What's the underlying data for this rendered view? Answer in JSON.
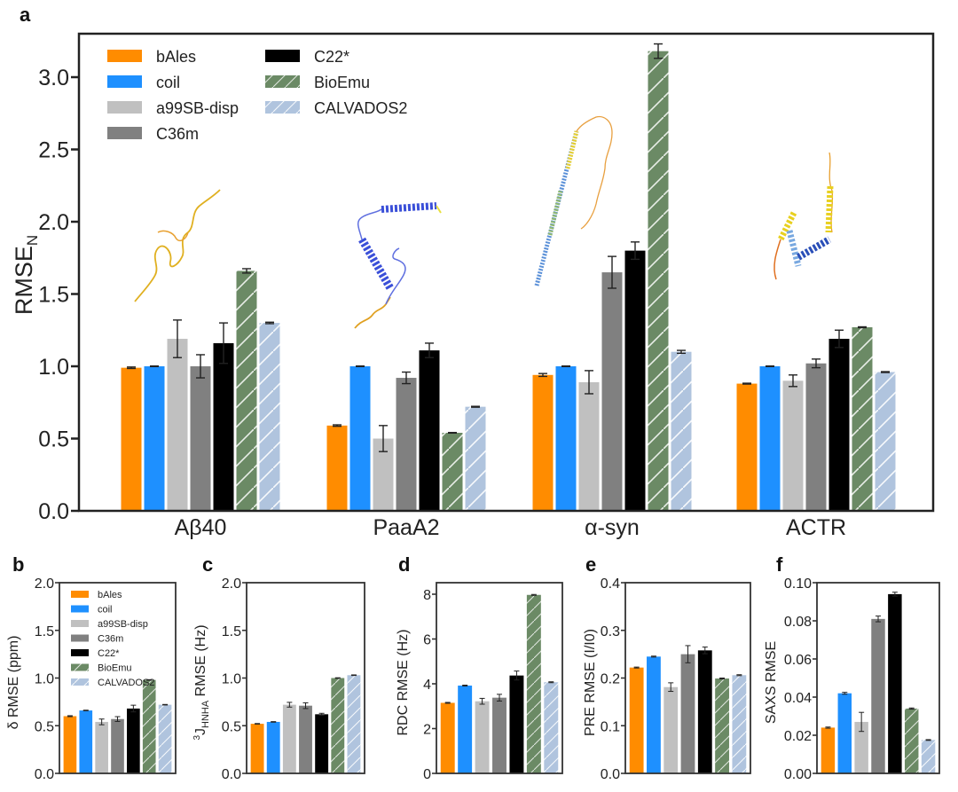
{
  "colors": {
    "bAles": "#ff8c00",
    "coil": "#1e90ff",
    "a99SB-disp": "#c0c0c0",
    "C36m": "#808080",
    "C22*": "#000000",
    "BioEmu": "#6b8a65",
    "CALVADOS2": "#b0c4de"
  },
  "hatched": [
    "BioEmu",
    "CALVADOS2"
  ],
  "chart_data": [
    {
      "panel": "a",
      "type": "bar",
      "title": "",
      "xlabel": "",
      "ylabel": "RMSE",
      "ylabel_sub": "N",
      "ylim": [
        0,
        3.25
      ],
      "yticks": [
        "0.0",
        "0.5",
        "1.0",
        "1.5",
        "2.0",
        "2.5",
        "3.0"
      ],
      "ytick_values": [
        0,
        0.5,
        1.0,
        1.5,
        2.0,
        2.5,
        3.0
      ],
      "legend": {
        "placement": "top-left",
        "columns": 2,
        "entries": [
          "bAles",
          "coil",
          "a99SB-disp",
          "C36m",
          "C22*",
          "BioEmu",
          "CALVADOS2"
        ]
      },
      "categories": [
        "Aβ40",
        "PaaA2",
        "α-syn",
        "ACTR"
      ],
      "series": [
        {
          "name": "bAles",
          "values": [
            0.99,
            0.59,
            0.94,
            0.88
          ],
          "errors": [
            0.005,
            0.005,
            0.01,
            0.003
          ]
        },
        {
          "name": "coil",
          "values": [
            1.0,
            1.0,
            1.0,
            1.0
          ],
          "errors": [
            0.002,
            0.002,
            0.002,
            0.002
          ]
        },
        {
          "name": "a99SB-disp",
          "values": [
            1.19,
            0.5,
            0.89,
            0.9
          ],
          "errors": [
            0.13,
            0.09,
            0.08,
            0.04
          ]
        },
        {
          "name": "C36m",
          "values": [
            1.0,
            0.92,
            1.65,
            1.02
          ],
          "errors": [
            0.08,
            0.04,
            0.11,
            0.03
          ]
        },
        {
          "name": "C22*",
          "values": [
            1.16,
            1.11,
            1.8,
            1.19
          ],
          "errors": [
            0.14,
            0.05,
            0.06,
            0.06
          ]
        },
        {
          "name": "BioEmu",
          "values": [
            1.66,
            0.54,
            3.18,
            1.27
          ],
          "errors": [
            0.015,
            0.002,
            0.05,
            0.003
          ]
        },
        {
          "name": "CALVADOS2",
          "values": [
            1.3,
            0.72,
            1.1,
            0.96
          ],
          "errors": [
            0.005,
            0.003,
            0.01,
            0.003
          ]
        }
      ],
      "annotations": [
        "Aβ40 structure",
        "PaaA2 structure",
        "α-syn structure",
        "ACTR structure"
      ]
    },
    {
      "panel": "b",
      "type": "bar",
      "ylabel": "δ RMSE (ppm)",
      "ylim": [
        0,
        2.0
      ],
      "yticks": [
        "0.0",
        "0.5",
        "1.0",
        "1.5",
        "2.0"
      ],
      "ytick_values": [
        0,
        0.5,
        1.0,
        1.5,
        2.0
      ],
      "legend": {
        "placement": "top-right",
        "columns": 1,
        "entries": [
          "bAles",
          "coil",
          "a99SB-disp",
          "C36m",
          "C22*",
          "BioEmu",
          "CALVADOS2"
        ]
      },
      "categories": [
        "bAles",
        "coil",
        "a99SB-disp",
        "C36m",
        "C22*",
        "BioEmu",
        "CALVADOS2"
      ],
      "values": [
        0.6,
        0.66,
        0.54,
        0.57,
        0.68,
        0.98,
        0.72
      ],
      "errors": [
        0.005,
        0.003,
        0.03,
        0.025,
        0.035,
        0.003,
        0.003
      ]
    },
    {
      "panel": "c",
      "type": "bar",
      "ylabel": "RMSE (Hz)",
      "ylabel_prefix_sup": "3",
      "ylabel_J": "J",
      "ylabel_sub": "HNHA",
      "ylim": [
        0,
        2.0
      ],
      "yticks": [
        "0.0",
        "0.5",
        "1.0",
        "1.5",
        "2.0"
      ],
      "ytick_values": [
        0,
        0.5,
        1.0,
        1.5,
        2.0
      ],
      "categories": [
        "bAles",
        "coil",
        "a99SB-disp",
        "C36m",
        "C22*",
        "BioEmu",
        "CALVADOS2"
      ],
      "values": [
        0.52,
        0.54,
        0.72,
        0.71,
        0.62,
        1.0,
        1.03
      ],
      "errors": [
        0.003,
        0.003,
        0.025,
        0.03,
        0.01,
        0.003,
        0.003
      ]
    },
    {
      "panel": "d",
      "type": "bar",
      "ylabel": "RDC RMSE (Hz)",
      "ylim": [
        0,
        8.5
      ],
      "yticks": [
        "0",
        "2",
        "4",
        "6",
        "8"
      ],
      "ytick_values": [
        0,
        2,
        4,
        6,
        8
      ],
      "categories": [
        "bAles",
        "coil",
        "a99SB-disp",
        "C36m",
        "C22*",
        "BioEmu",
        "CALVADOS2"
      ],
      "values": [
        3.15,
        3.92,
        3.22,
        3.38,
        4.37,
        7.97,
        4.07
      ],
      "errors": [
        0.02,
        0.02,
        0.13,
        0.15,
        0.2,
        0.02,
        0.02
      ]
    },
    {
      "panel": "e",
      "type": "bar",
      "ylabel": "PRE RMSE (I/I0)",
      "ylim": [
        0,
        0.4
      ],
      "yticks": [
        "0.0",
        "0.1",
        "0.2",
        "0.3",
        "0.4"
      ],
      "ytick_values": [
        0,
        0.1,
        0.2,
        0.3,
        0.4
      ],
      "categories": [
        "bAles",
        "coil",
        "a99SB-disp",
        "C36m",
        "C22*",
        "BioEmu",
        "CALVADOS2"
      ],
      "values": [
        0.222,
        0.245,
        0.181,
        0.25,
        0.258,
        0.199,
        0.206
      ],
      "errors": [
        0.001,
        0.001,
        0.009,
        0.018,
        0.007,
        0.001,
        0.001
      ]
    },
    {
      "panel": "f",
      "type": "bar",
      "ylabel": "SAXS RMSE",
      "ylim": [
        0,
        0.1
      ],
      "yticks": [
        "0.00",
        "0.02",
        "0.04",
        "0.06",
        "0.08",
        "0.10"
      ],
      "ytick_values": [
        0,
        0.02,
        0.04,
        0.06,
        0.08,
        0.1
      ],
      "categories": [
        "bAles",
        "coil",
        "a99SB-disp",
        "C36m",
        "C22*",
        "BioEmu",
        "CALVADOS2"
      ],
      "values": [
        0.024,
        0.042,
        0.027,
        0.081,
        0.094,
        0.034,
        0.0175
      ],
      "errors": [
        0.0003,
        0.0005,
        0.005,
        0.0015,
        0.001,
        0.0003,
        0.0002
      ]
    }
  ]
}
